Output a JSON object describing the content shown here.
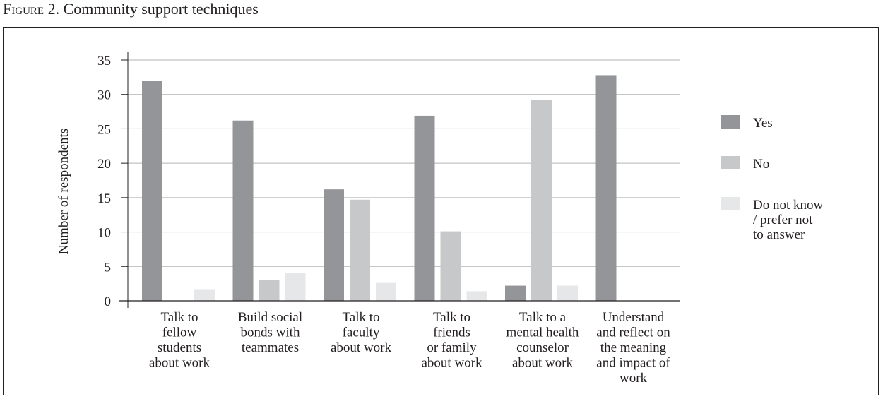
{
  "figure": {
    "prefix": "Figure 2.",
    "caption": "Community support techniques"
  },
  "chart_data": {
    "type": "bar",
    "ylabel": "Number of respondents",
    "ylim": [
      0,
      35
    ],
    "yticks": [
      0,
      5,
      10,
      15,
      20,
      25,
      30,
      35
    ],
    "grid": true,
    "legend_position": "right",
    "categories": [
      [
        "Talk to",
        "fellow",
        "students",
        "about work"
      ],
      [
        "Build social",
        "bonds with",
        "teammates"
      ],
      [
        "Talk to",
        "faculty",
        "about work"
      ],
      [
        "Talk to",
        "friends",
        "or family",
        "about work"
      ],
      [
        "Talk to a",
        "mental health",
        "counselor",
        "about work"
      ],
      [
        "Understand",
        "and reflect on",
        "the meaning",
        "and impact of",
        "work"
      ]
    ],
    "series": [
      {
        "name": "Yes",
        "color": "#939598",
        "values": [
          32,
          26.2,
          16.2,
          26.9,
          2.2,
          32.8
        ]
      },
      {
        "name": "No",
        "color": "#c7c8ca",
        "values": [
          0,
          3,
          14.7,
          10.1,
          29.2,
          0
        ]
      },
      {
        "name": "Do not know / prefer not to answer",
        "legend_lines": [
          "Do not know",
          "/ prefer not",
          "to answer"
        ],
        "color": "#e6e7e8",
        "values": [
          1.7,
          4.1,
          2.6,
          1.4,
          2.2,
          0
        ]
      }
    ]
  }
}
